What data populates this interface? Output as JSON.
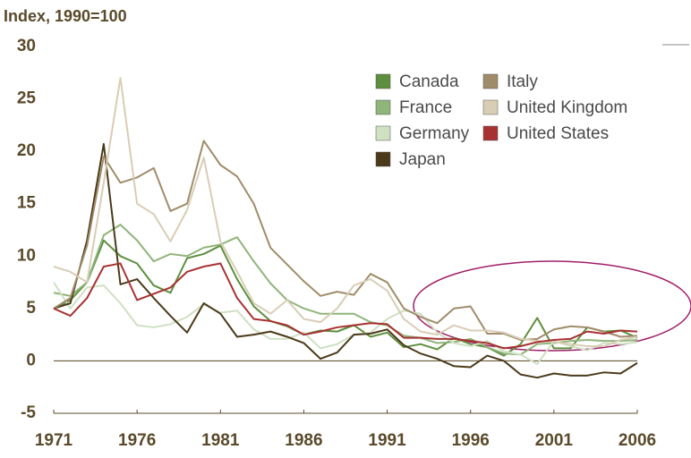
{
  "chart_data": {
    "type": "line",
    "title": "Index, 1990=100",
    "x": [
      1971,
      1972,
      1973,
      1974,
      1975,
      1976,
      1977,
      1978,
      1979,
      1980,
      1981,
      1982,
      1983,
      1984,
      1985,
      1986,
      1987,
      1988,
      1989,
      1990,
      1991,
      1992,
      1993,
      1994,
      1995,
      1996,
      1997,
      1998,
      1999,
      2000,
      2001,
      2002,
      2003,
      2004,
      2005,
      2006
    ],
    "xlim": [
      1971,
      2006
    ],
    "xticks": [
      1971,
      1976,
      1981,
      1986,
      1991,
      1996,
      2001,
      2006
    ],
    "ylim": [
      -5,
      30
    ],
    "yticks": [
      -5,
      0,
      5,
      10,
      15,
      20,
      25,
      30
    ],
    "series": [
      {
        "name": "Canada",
        "color": "#5e8f3e",
        "values": [
          5,
          5.8,
          7.5,
          11.5,
          10,
          9.3,
          7.2,
          6.5,
          9.8,
          10.2,
          11,
          7.8,
          5.2,
          3.8,
          3.3,
          2.5,
          2.9,
          2.8,
          3.4,
          2.3,
          2.7,
          1.3,
          1.6,
          1.1,
          2.2,
          1.6,
          1.3,
          0.5,
          1.6,
          4.1,
          1.2,
          1.2,
          3.2,
          2.8,
          2.9,
          2.2
        ]
      },
      {
        "name": "France",
        "color": "#8fb57a",
        "values": [
          6.5,
          6.2,
          7.5,
          12,
          13,
          11.5,
          9.5,
          10.2,
          10,
          10.8,
          11.1,
          11.8,
          9.5,
          7.4,
          5.8,
          5,
          4.5,
          4.5,
          4.5,
          3.7,
          3.4,
          2.4,
          2.2,
          1.7,
          1.8,
          2.1,
          1.3,
          0.7,
          0.6,
          1.6,
          1.7,
          1.9,
          2,
          1.9,
          1.9,
          2
        ]
      },
      {
        "name": "Germany",
        "color": "#cfe0c3",
        "values": [
          7.5,
          5,
          7,
          7.2,
          5.5,
          3.4,
          3.2,
          3.5,
          4.2,
          5.4,
          4.6,
          4.8,
          3,
          2.1,
          2.1,
          2.7,
          1.2,
          1.6,
          2.5,
          2.7,
          4,
          4.8,
          4.5,
          2.7,
          1.7,
          1.4,
          1.9,
          0.9,
          0.6,
          -0.3,
          1.9,
          1.4,
          1,
          1.7,
          1.6,
          1.8
        ]
      },
      {
        "name": "Japan",
        "color": "#4a3a1a",
        "values": [
          5,
          5.5,
          11.5,
          20.7,
          7.3,
          7.8,
          6,
          4.3,
          2.7,
          5.5,
          4.5,
          2.3,
          2.5,
          2.8,
          2.3,
          1.7,
          0.2,
          0.8,
          2.5,
          2.6,
          3,
          1.5,
          0.7,
          0.2,
          -0.5,
          -0.6,
          0.5,
          0,
          -1.3,
          -1.6,
          -1.2,
          -1.4,
          -1.4,
          -1.1,
          -1.2,
          -0.2
        ]
      },
      {
        "name": "Italy",
        "color": "#a08c6a",
        "values": [
          5,
          6,
          11,
          19.5,
          17,
          17.5,
          18.4,
          14.3,
          15,
          21,
          18.7,
          17.6,
          15,
          10.8,
          9.2,
          7.6,
          6.2,
          6.6,
          6.3,
          8.3,
          7.5,
          5,
          4.2,
          3.6,
          5,
          5.2,
          2.6,
          2.6,
          2,
          2.1,
          3,
          3.3,
          3.2,
          2.8,
          2.3,
          2.4
        ]
      },
      {
        "name": "United Kingdom",
        "color": "#d9cdb5",
        "values": [
          9,
          8.5,
          7.5,
          17,
          27,
          15,
          14,
          11.4,
          14.4,
          19.4,
          11.4,
          8.5,
          5.5,
          4.5,
          5.8,
          4,
          3.7,
          5,
          7.2,
          7.8,
          6.7,
          4,
          2.8,
          2.5,
          3.4,
          2.9,
          2.9,
          2.7,
          2.1,
          1.9,
          1.8,
          1.6,
          1.4,
          1.4,
          2,
          2.3
        ]
      },
      {
        "name": "United States",
        "color": "#a83232",
        "values": [
          5,
          4.3,
          6,
          9,
          9.3,
          5.8,
          6.4,
          7,
          8.5,
          9,
          9.3,
          6,
          4,
          3.8,
          3.4,
          2.5,
          2.8,
          3.2,
          3.4,
          3.6,
          3.5,
          2.2,
          2.2,
          2.1,
          2.1,
          1.9,
          1.7,
          1.2,
          1.4,
          1.8,
          2,
          2.1,
          2.8,
          2.6,
          2.9,
          2.8
        ]
      }
    ]
  }
}
